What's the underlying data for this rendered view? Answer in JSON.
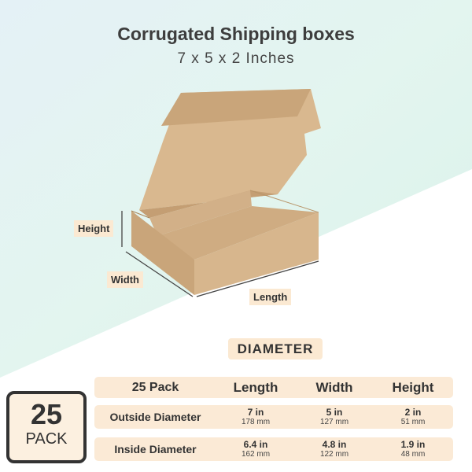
{
  "title": "Corrugated Shipping boxes",
  "subtitle": "7 x 5 x 2 Inches",
  "labels": {
    "height": "Height",
    "width": "Width",
    "length": "Length"
  },
  "section": "DIAMETER",
  "pack": {
    "count": "25",
    "unit": "PACK"
  },
  "table": {
    "header": [
      "25 Pack",
      "Length",
      "Width",
      "Height"
    ],
    "rows": [
      {
        "label": "Outside Diameter",
        "cells": [
          {
            "in": "7 in",
            "mm": "178 mm"
          },
          {
            "in": "5 in",
            "mm": "127 mm"
          },
          {
            "in": "2 in",
            "mm": "51 mm"
          }
        ]
      },
      {
        "label": "Inside Diameter",
        "cells": [
          {
            "in": "6.4 in",
            "mm": "162 mm"
          },
          {
            "in": "4.8 in",
            "mm": "122 mm"
          },
          {
            "in": "1.9 in",
            "mm": "48 mm"
          }
        ]
      }
    ]
  },
  "colors": {
    "cardboard": "#c9a57a",
    "label_bg": "#fbe9d2",
    "bg_top": "#e2f4ee",
    "bg_left": "#dff0f7"
  }
}
